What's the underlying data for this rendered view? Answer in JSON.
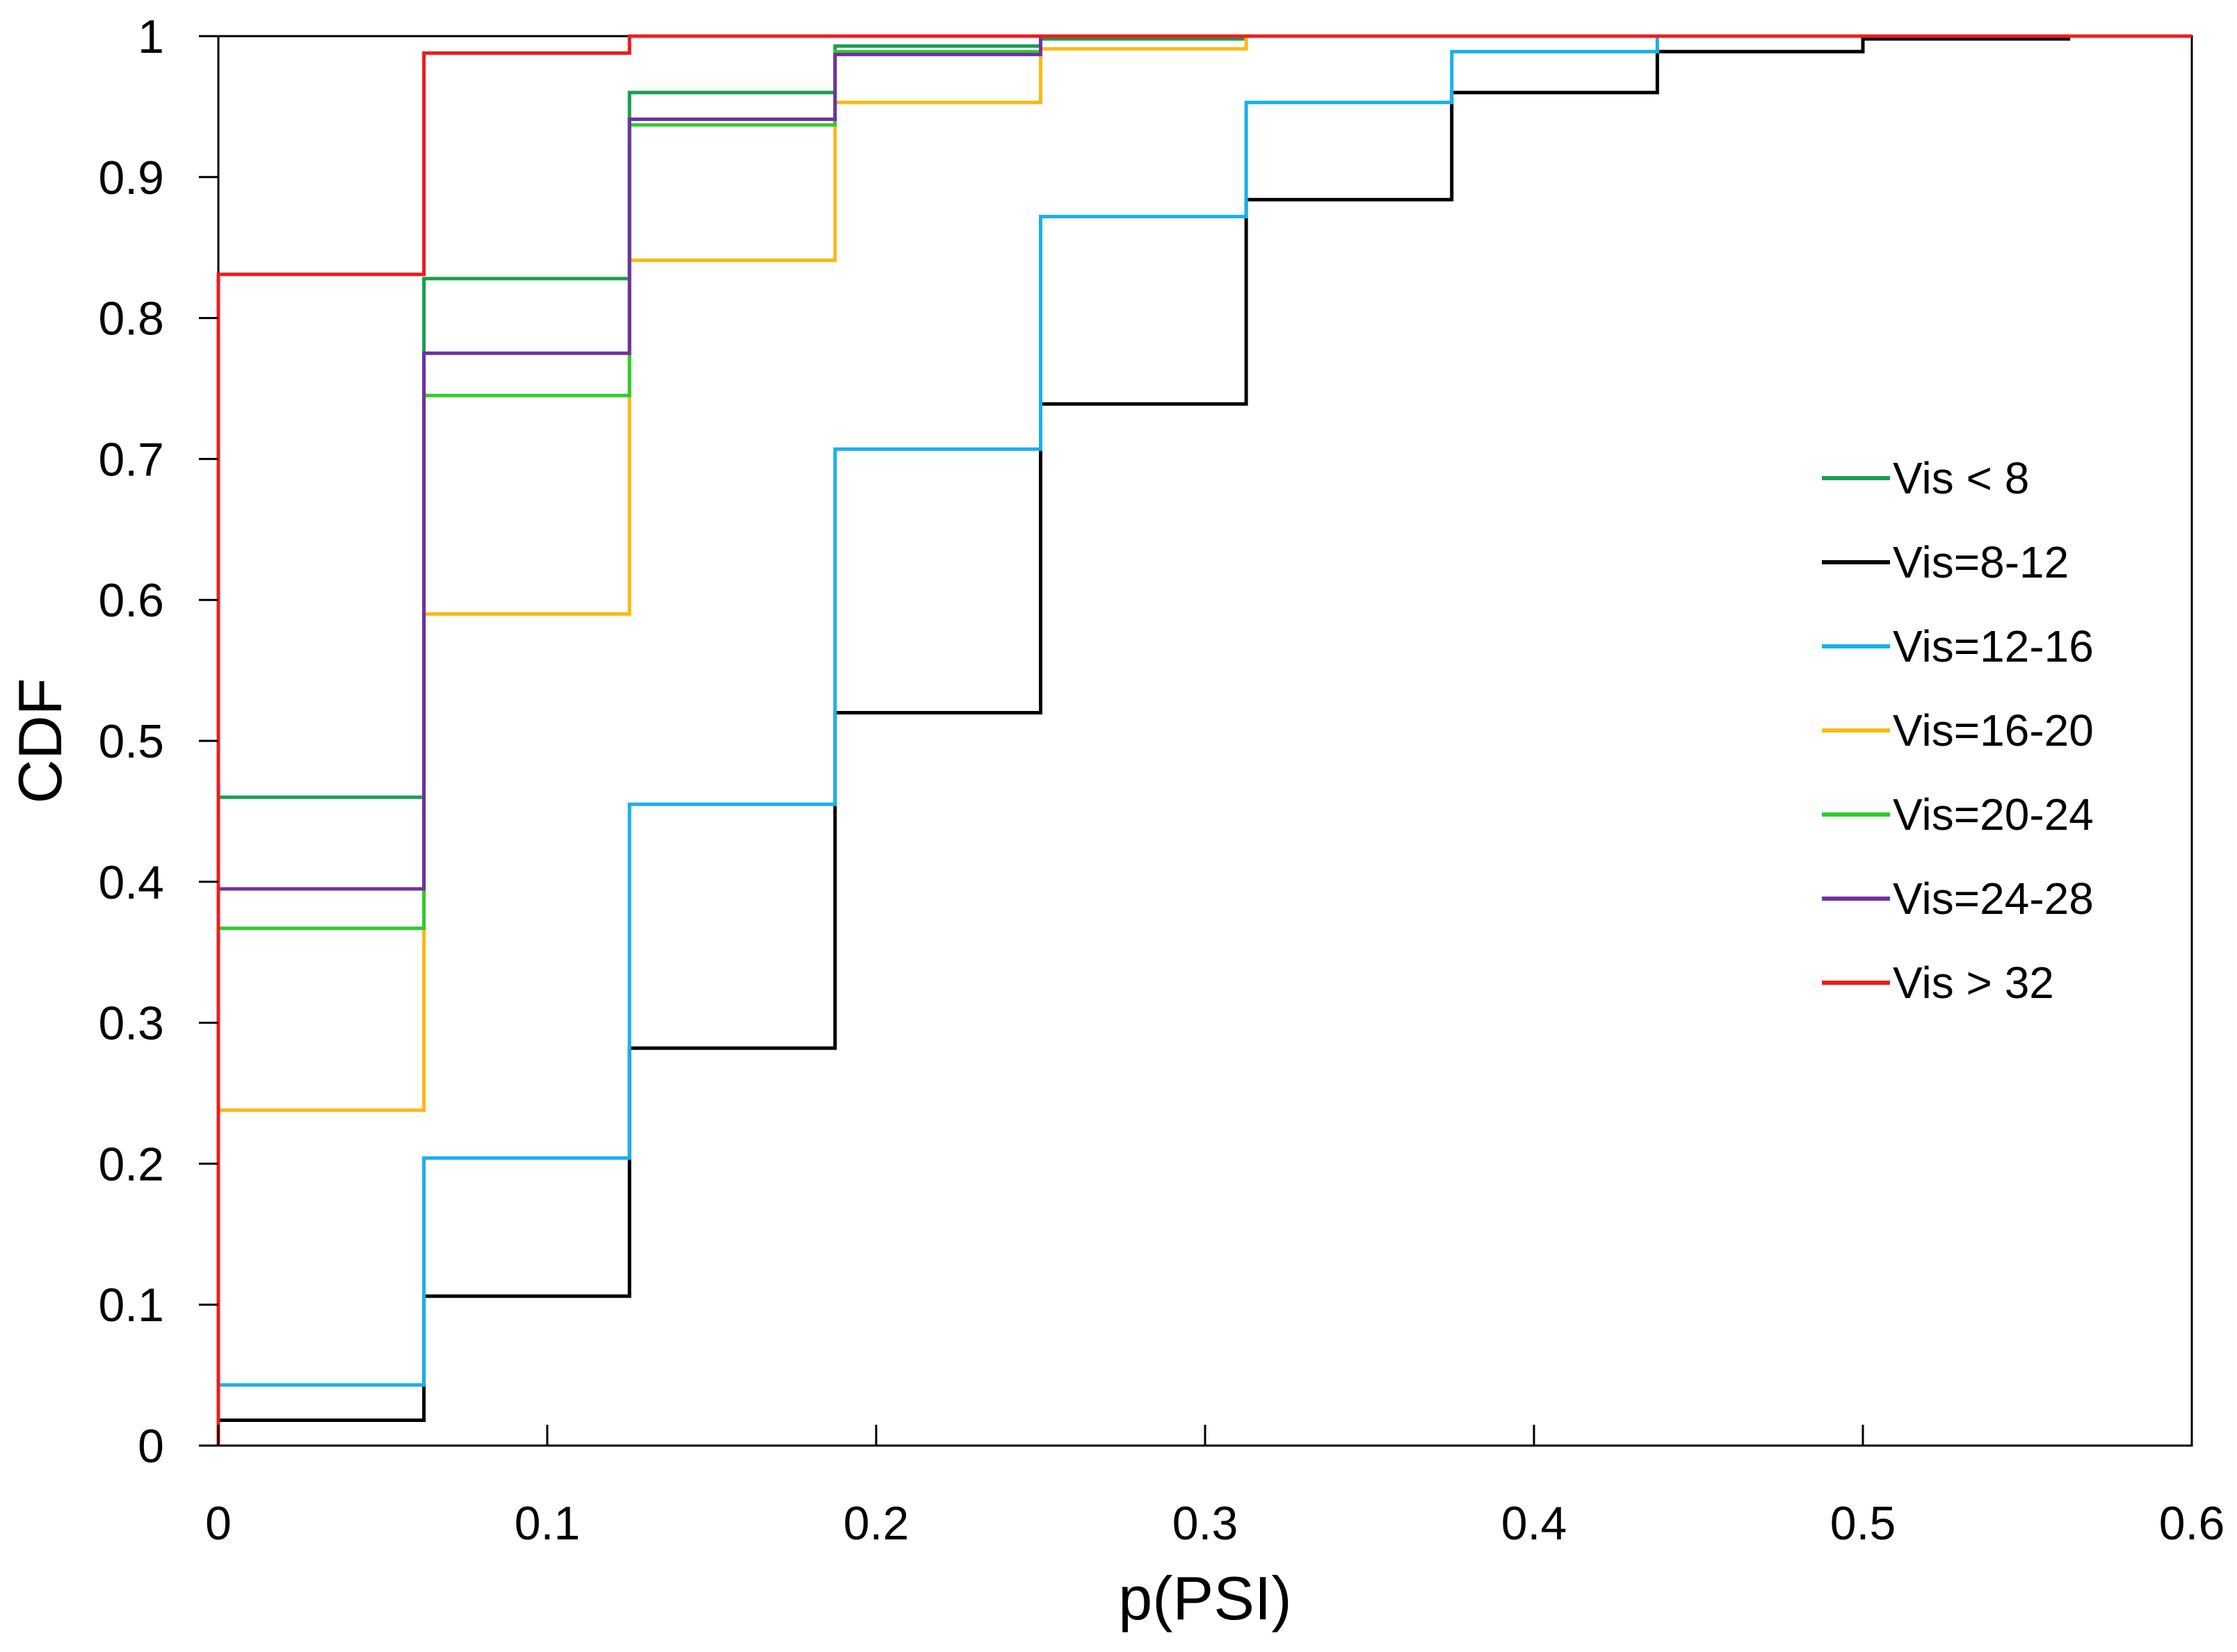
{
  "chart_data": {
    "type": "line",
    "step": true,
    "title": "",
    "xlabel": "p(PSI)",
    "ylabel": "CDF",
    "xlim": [
      0,
      0.6
    ],
    "ylim": [
      0,
      1
    ],
    "xticks": [
      "0",
      "0.1",
      "0.2",
      "0.3",
      "0.4",
      "0.5",
      "0.6"
    ],
    "yticks": [
      "0",
      "0.1",
      "0.2",
      "0.3",
      "0.4",
      "0.5",
      "0.6",
      "0.7",
      "0.8",
      "0.9",
      "1"
    ],
    "grid": false,
    "legend_position": "right",
    "x": [
      0,
      0.0625,
      0.125,
      0.1875,
      0.25,
      0.3125,
      0.375,
      0.4375,
      0.5,
      0.5625
    ],
    "series": [
      {
        "name": "Vis < 8",
        "color": "#1a9e50",
        "values": [
          0.46,
          0.828,
          0.96,
          0.993,
          0.998,
          1.0,
          1.0,
          1.0,
          1.0,
          1.0
        ]
      },
      {
        "name": "Vis=8-12",
        "color": "#000000",
        "values": [
          0.018,
          0.106,
          0.282,
          0.52,
          0.739,
          0.884,
          0.96,
          0.989,
          0.998,
          1.0
        ]
      },
      {
        "name": "Vis=12-16",
        "color": "#1ab0ea",
        "values": [
          0.043,
          0.204,
          0.455,
          0.707,
          0.872,
          0.953,
          0.989,
          1.0,
          1.0,
          1.0
        ]
      },
      {
        "name": "Vis=16-20",
        "color": "#fbb916",
        "values": [
          0.238,
          0.59,
          0.841,
          0.953,
          0.991,
          1.0,
          1.0,
          1.0,
          1.0,
          1.0
        ]
      },
      {
        "name": "Vis=20-24",
        "color": "#2ecc2e",
        "values": [
          0.367,
          0.745,
          0.937,
          0.989,
          1.0,
          1.0,
          1.0,
          1.0,
          1.0,
          1.0
        ]
      },
      {
        "name": "Vis=24-28",
        "color": "#7030a0",
        "values": [
          0.395,
          0.775,
          0.941,
          0.987,
          1.0,
          1.0,
          1.0,
          1.0,
          1.0,
          1.0
        ]
      },
      {
        "name": "Vis > 32",
        "color": "#ee1c1c",
        "values": [
          0.831,
          0.988,
          1.0,
          1.0,
          1.0,
          1.0,
          1.0,
          1.0,
          1.0,
          1.0
        ]
      }
    ]
  }
}
